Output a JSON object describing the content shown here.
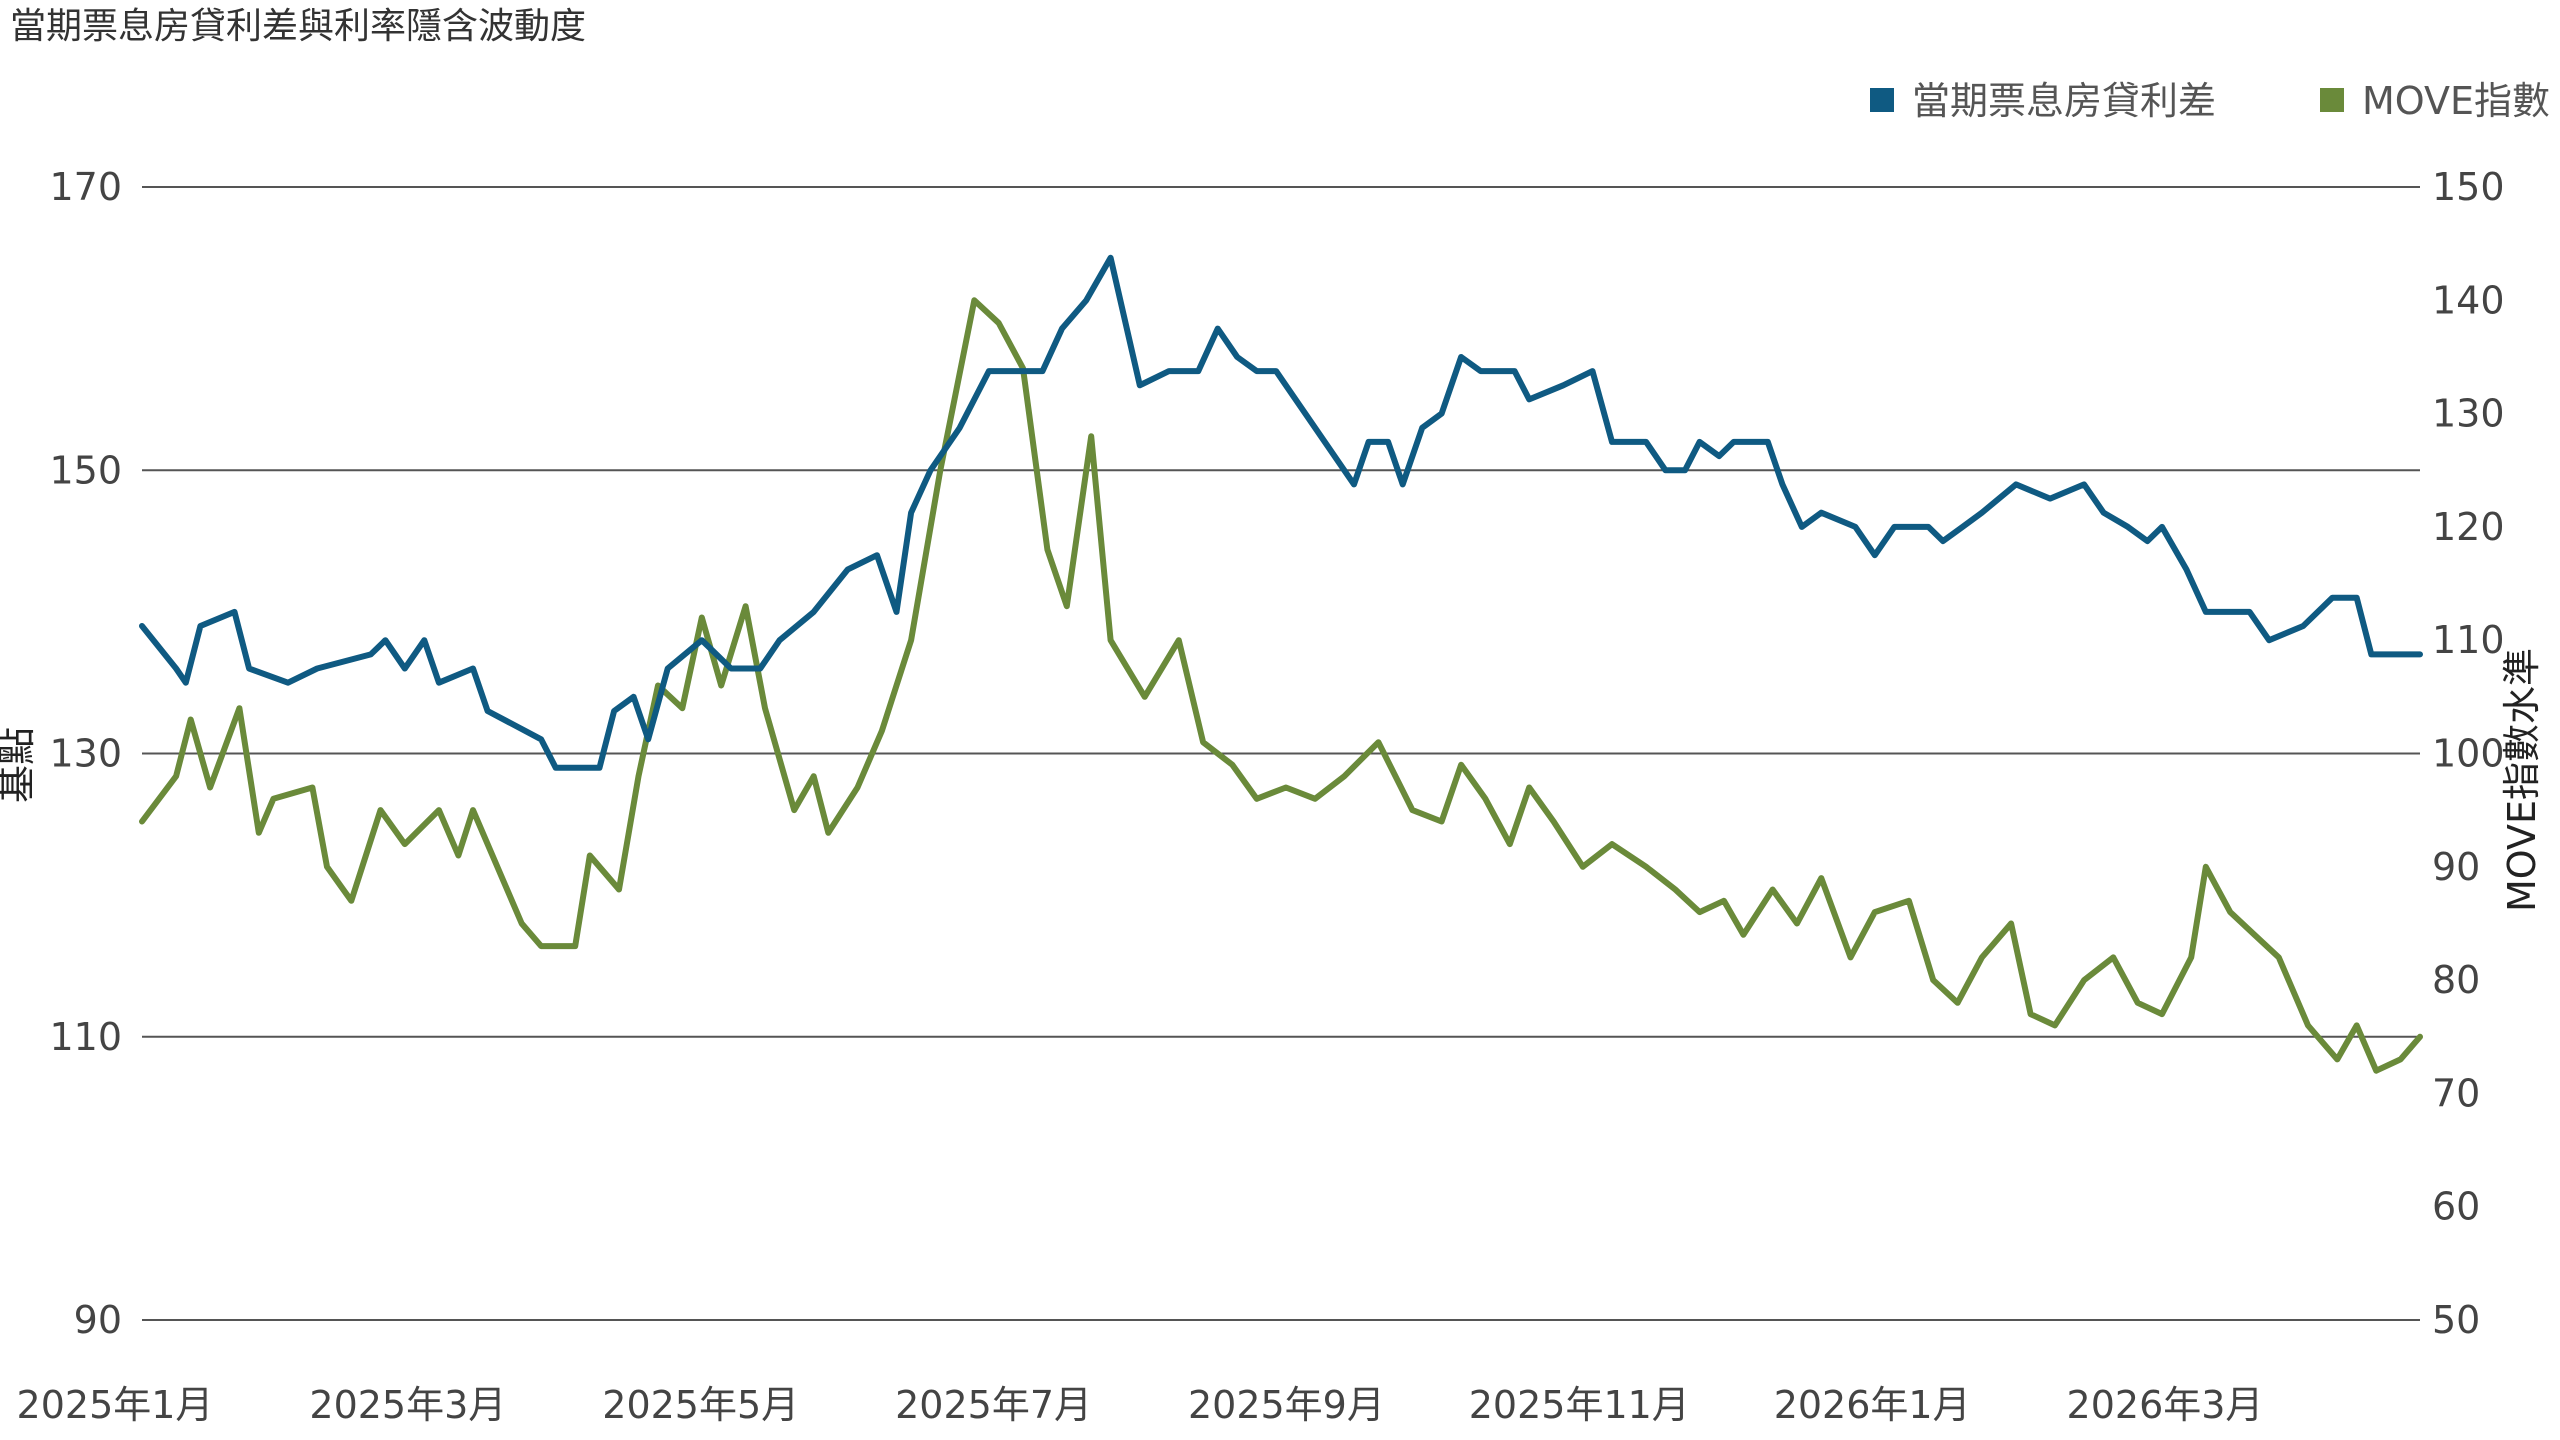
{
  "chart_data": {
    "type": "line",
    "title": "當期票息房貸利差與利率隱含波動度",
    "y_left_label": "基點",
    "y_right_label": "MOVE指數水準",
    "y_left_ticks": [
      90,
      110,
      130,
      150,
      170
    ],
    "y_right_ticks": [
      50,
      60,
      70,
      80,
      90,
      100,
      110,
      120,
      130,
      140,
      150
    ],
    "y_left_range": [
      90,
      170
    ],
    "y_right_range": [
      50,
      150
    ],
    "x_ticks": [
      "2025年1月",
      "2025年3月",
      "2025年5月",
      "2025年7月",
      "2025年9月",
      "2025年11月",
      "2026年1月",
      "2026年3月"
    ],
    "x_range": [
      "2025-01-01",
      "2026-04-14"
    ],
    "grid": "horizontal",
    "legend_position": "top-right",
    "series": [
      {
        "name": "當期票息房貸利差",
        "axis": "left",
        "color": "#0f5a82",
        "points": [
          [
            "2025-01-01",
            139
          ],
          [
            "2025-01-08",
            136
          ],
          [
            "2025-01-10",
            135
          ],
          [
            "2025-01-13",
            139
          ],
          [
            "2025-01-20",
            140
          ],
          [
            "2025-01-23",
            136
          ],
          [
            "2025-01-31",
            135
          ],
          [
            "2025-02-06",
            136
          ],
          [
            "2025-02-17",
            137
          ],
          [
            "2025-02-20",
            138
          ],
          [
            "2025-02-24",
            136
          ],
          [
            "2025-02-28",
            138
          ],
          [
            "2025-03-03",
            135
          ],
          [
            "2025-03-10",
            136
          ],
          [
            "2025-03-13",
            133
          ],
          [
            "2025-03-24",
            131
          ],
          [
            "2025-03-27",
            129
          ],
          [
            "2025-04-01",
            129
          ],
          [
            "2025-04-05",
            129
          ],
          [
            "2025-04-08",
            133
          ],
          [
            "2025-04-12",
            134
          ],
          [
            "2025-04-15",
            131
          ],
          [
            "2025-04-19",
            136
          ],
          [
            "2025-04-26",
            138
          ],
          [
            "2025-05-02",
            136
          ],
          [
            "2025-05-08",
            136
          ],
          [
            "2025-05-12",
            138
          ],
          [
            "2025-05-19",
            140
          ],
          [
            "2025-05-26",
            143
          ],
          [
            "2025-06-01",
            144
          ],
          [
            "2025-06-05",
            140
          ],
          [
            "2025-06-08",
            147
          ],
          [
            "2025-06-12",
            150
          ],
          [
            "2025-06-18",
            153
          ],
          [
            "2025-06-24",
            157
          ],
          [
            "2025-06-30",
            157
          ],
          [
            "2025-07-05",
            157
          ],
          [
            "2025-07-09",
            160
          ],
          [
            "2025-07-14",
            162
          ],
          [
            "2025-07-19",
            165
          ],
          [
            "2025-07-25",
            156
          ],
          [
            "2025-07-31",
            157
          ],
          [
            "2025-08-06",
            157
          ],
          [
            "2025-08-10",
            160
          ],
          [
            "2025-08-14",
            158
          ],
          [
            "2025-08-18",
            157
          ],
          [
            "2025-08-22",
            157
          ],
          [
            "2025-08-28",
            154
          ],
          [
            "2025-09-01",
            152
          ],
          [
            "2025-09-07",
            149
          ],
          [
            "2025-09-10",
            152
          ],
          [
            "2025-09-14",
            152
          ],
          [
            "2025-09-17",
            149
          ],
          [
            "2025-09-21",
            153
          ],
          [
            "2025-09-25",
            154
          ],
          [
            "2025-09-29",
            158
          ],
          [
            "2025-10-03",
            157
          ],
          [
            "2025-10-10",
            157
          ],
          [
            "2025-10-13",
            155
          ],
          [
            "2025-10-20",
            156
          ],
          [
            "2025-10-26",
            157
          ],
          [
            "2025-10-30",
            152
          ],
          [
            "2025-11-06",
            152
          ],
          [
            "2025-11-10",
            150
          ],
          [
            "2025-11-14",
            150
          ],
          [
            "2025-11-17",
            152
          ],
          [
            "2025-11-21",
            151
          ],
          [
            "2025-11-24",
            152
          ],
          [
            "2025-12-01",
            152
          ],
          [
            "2025-12-04",
            149
          ],
          [
            "2025-12-08",
            146
          ],
          [
            "2025-12-12",
            147
          ],
          [
            "2025-12-19",
            146
          ],
          [
            "2025-12-23",
            144
          ],
          [
            "2025-12-27",
            146
          ],
          [
            "2026-01-03",
            146
          ],
          [
            "2026-01-06",
            145
          ],
          [
            "2026-01-10",
            146
          ],
          [
            "2026-01-14",
            147
          ],
          [
            "2026-01-21",
            149
          ],
          [
            "2026-01-28",
            148
          ],
          [
            "2026-02-04",
            149
          ],
          [
            "2026-02-08",
            147
          ],
          [
            "2026-02-13",
            146
          ],
          [
            "2026-02-17",
            145
          ],
          [
            "2026-02-20",
            146
          ],
          [
            "2026-02-25",
            143
          ],
          [
            "2026-03-01",
            140
          ],
          [
            "2026-03-04",
            140
          ],
          [
            "2026-03-10",
            140
          ],
          [
            "2026-03-14",
            138
          ],
          [
            "2026-03-21",
            139
          ],
          [
            "2026-03-27",
            141
          ],
          [
            "2026-04-01",
            141
          ],
          [
            "2026-04-04",
            137
          ],
          [
            "2026-04-14",
            137
          ]
        ]
      },
      {
        "name": "MOVE指數",
        "axis": "right",
        "color": "#6a8a3a",
        "points": [
          [
            "2025-01-01",
            94
          ],
          [
            "2025-01-08",
            98
          ],
          [
            "2025-01-11",
            103
          ],
          [
            "2025-01-15",
            97
          ],
          [
            "2025-01-21",
            104
          ],
          [
            "2025-01-25",
            93
          ],
          [
            "2025-01-28",
            96
          ],
          [
            "2025-02-05",
            97
          ],
          [
            "2025-02-08",
            90
          ],
          [
            "2025-02-13",
            87
          ],
          [
            "2025-02-19",
            95
          ],
          [
            "2025-02-24",
            92
          ],
          [
            "2025-03-03",
            95
          ],
          [
            "2025-03-07",
            91
          ],
          [
            "2025-03-10",
            95
          ],
          [
            "2025-03-20",
            85
          ],
          [
            "2025-03-24",
            83
          ],
          [
            "2025-03-31",
            83
          ],
          [
            "2025-04-03",
            91
          ],
          [
            "2025-04-09",
            88
          ],
          [
            "2025-04-13",
            98
          ],
          [
            "2025-04-17",
            106
          ],
          [
            "2025-04-22",
            104
          ],
          [
            "2025-04-26",
            112
          ],
          [
            "2025-04-30",
            106
          ],
          [
            "2025-05-05",
            113
          ],
          [
            "2025-05-09",
            104
          ],
          [
            "2025-05-15",
            95
          ],
          [
            "2025-05-19",
            98
          ],
          [
            "2025-05-22",
            93
          ],
          [
            "2025-05-28",
            97
          ],
          [
            "2025-06-02",
            102
          ],
          [
            "2025-06-08",
            110
          ],
          [
            "2025-06-14",
            125
          ],
          [
            "2025-06-21",
            140
          ],
          [
            "2025-06-26",
            138
          ],
          [
            "2025-07-01",
            134
          ],
          [
            "2025-07-06",
            118
          ],
          [
            "2025-07-10",
            113
          ],
          [
            "2025-07-15",
            128
          ],
          [
            "2025-07-19",
            110
          ],
          [
            "2025-07-26",
            105
          ],
          [
            "2025-08-02",
            110
          ],
          [
            "2025-08-07",
            101
          ],
          [
            "2025-08-13",
            99
          ],
          [
            "2025-08-18",
            96
          ],
          [
            "2025-08-24",
            97
          ],
          [
            "2025-08-30",
            96
          ],
          [
            "2025-09-05",
            98
          ],
          [
            "2025-09-12",
            101
          ],
          [
            "2025-09-19",
            95
          ],
          [
            "2025-09-25",
            94
          ],
          [
            "2025-09-29",
            99
          ],
          [
            "2025-10-04",
            96
          ],
          [
            "2025-10-09",
            92
          ],
          [
            "2025-10-13",
            97
          ],
          [
            "2025-10-18",
            94
          ],
          [
            "2025-10-24",
            90
          ],
          [
            "2025-10-30",
            92
          ],
          [
            "2025-11-06",
            90
          ],
          [
            "2025-11-12",
            88
          ],
          [
            "2025-11-17",
            86
          ],
          [
            "2025-11-22",
            87
          ],
          [
            "2025-11-26",
            84
          ],
          [
            "2025-12-02",
            88
          ],
          [
            "2025-12-07",
            85
          ],
          [
            "2025-12-12",
            89
          ],
          [
            "2025-12-18",
            82
          ],
          [
            "2025-12-23",
            86
          ],
          [
            "2025-12-30",
            87
          ],
          [
            "2026-01-04",
            80
          ],
          [
            "2026-01-09",
            78
          ],
          [
            "2026-01-14",
            82
          ],
          [
            "2026-01-20",
            85
          ],
          [
            "2026-01-24",
            77
          ],
          [
            "2026-01-29",
            76
          ],
          [
            "2026-02-04",
            80
          ],
          [
            "2026-02-10",
            82
          ],
          [
            "2026-02-15",
            78
          ],
          [
            "2026-02-20",
            77
          ],
          [
            "2026-02-26",
            82
          ],
          [
            "2026-03-01",
            90
          ],
          [
            "2026-03-06",
            86
          ],
          [
            "2026-03-11",
            84
          ],
          [
            "2026-03-16",
            82
          ],
          [
            "2026-03-22",
            76
          ],
          [
            "2026-03-28",
            73
          ],
          [
            "2026-04-01",
            76
          ],
          [
            "2026-04-05",
            72
          ],
          [
            "2026-04-10",
            73
          ],
          [
            "2026-04-14",
            75
          ]
        ]
      }
    ]
  }
}
